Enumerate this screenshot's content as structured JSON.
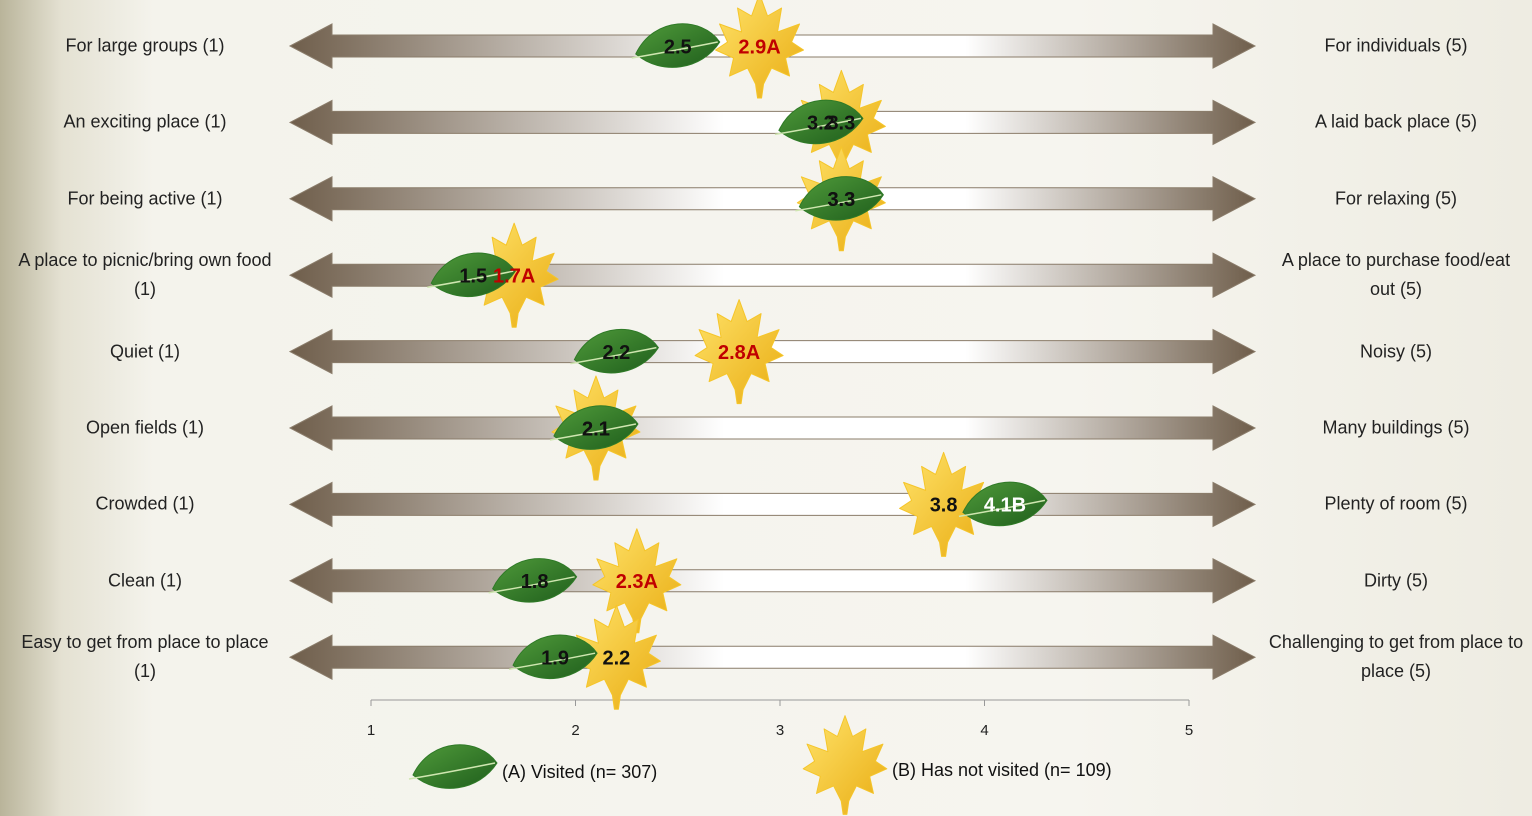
{
  "chart_data": {
    "type": "differential",
    "left_labels": [
      "For large groups (1)",
      "An exciting place (1)",
      "For being active (1)",
      "A place to picnic/bring own food (1)",
      "Quiet (1)",
      "Open fields (1)",
      "Crowded (1)",
      "Clean (1)",
      "Easy to get from place to place (1)"
    ],
    "right_labels": [
      "For individuals (5)",
      "A laid back place (5)",
      "For relaxing (5)",
      "A place to purchase food/eat out (5)",
      "Noisy (5)",
      "Many buildings (5)",
      "Plenty of room (5)",
      "Dirty (5)",
      "Challenging to get from place to place (5)"
    ],
    "xlim": [
      1,
      5
    ],
    "xticks": [
      1,
      2,
      3,
      4,
      5
    ],
    "series": [
      {
        "name": "(A) Visited (n= 307)",
        "color": "#2f7a27",
        "marker": "leaf",
        "values": [
          2.5,
          3.2,
          3.3,
          1.5,
          2.2,
          2.1,
          4.1,
          1.8,
          1.9
        ],
        "value_labels": [
          "2.5",
          "3.2",
          "3.3",
          "1.5",
          "2.2",
          "2.1",
          "4.1B",
          "1.8",
          "1.9"
        ],
        "value_label_colors": [
          "#111111",
          "#111111",
          "#111111",
          "#111111",
          "#111111",
          "#111111",
          "#ffffff",
          "#111111",
          "#111111"
        ]
      },
      {
        "name": "(B) Has not visited (n= 109)",
        "color": "#f5c52a",
        "marker": "maple",
        "values": [
          2.9,
          3.3,
          3.3,
          1.7,
          2.8,
          2.1,
          3.8,
          2.3,
          2.2
        ],
        "value_labels": [
          "2.9A",
          "3.3",
          "3.3",
          "1.7A",
          "2.8A",
          "2.1",
          "3.8",
          "2.3A",
          "2.2"
        ],
        "value_label_colors": [
          "#c00000",
          "#111111",
          "#111111",
          "#c00000",
          "#c00000",
          "#111111",
          "#111111",
          "#c00000",
          "#111111"
        ]
      }
    ]
  }
}
